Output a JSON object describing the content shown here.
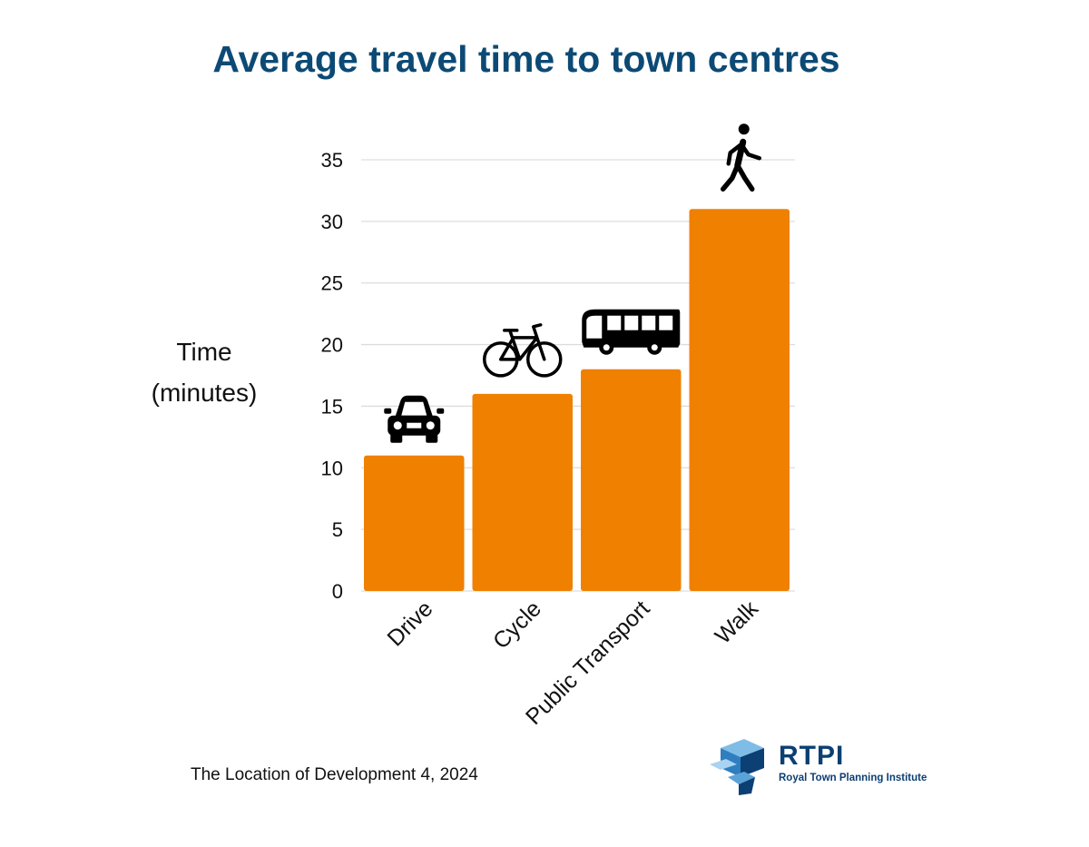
{
  "chart_data": {
    "type": "bar",
    "title": "Average travel time to town centres",
    "ylabel": [
      "Time",
      "(minutes)"
    ],
    "xlabel": "",
    "categories": [
      "Drive",
      "Cycle",
      "Public Transport",
      "Walk"
    ],
    "values": [
      11,
      16,
      18,
      31
    ],
    "icons": [
      "car-icon",
      "bicycle-icon",
      "bus-icon",
      "pedestrian-icon"
    ],
    "ylim": [
      0,
      35
    ],
    "yticks": [
      0,
      5,
      10,
      15,
      20,
      25,
      30,
      35
    ],
    "grid": true,
    "bar_color": "#f08000",
    "grid_color": "#dddddd"
  },
  "source": "The Location of Development 4, 2024",
  "logo": {
    "name": "RTPI",
    "subtitle": "Royal Town Planning Institute",
    "color": "#0c3f73",
    "accent": "#5aa3d8"
  }
}
